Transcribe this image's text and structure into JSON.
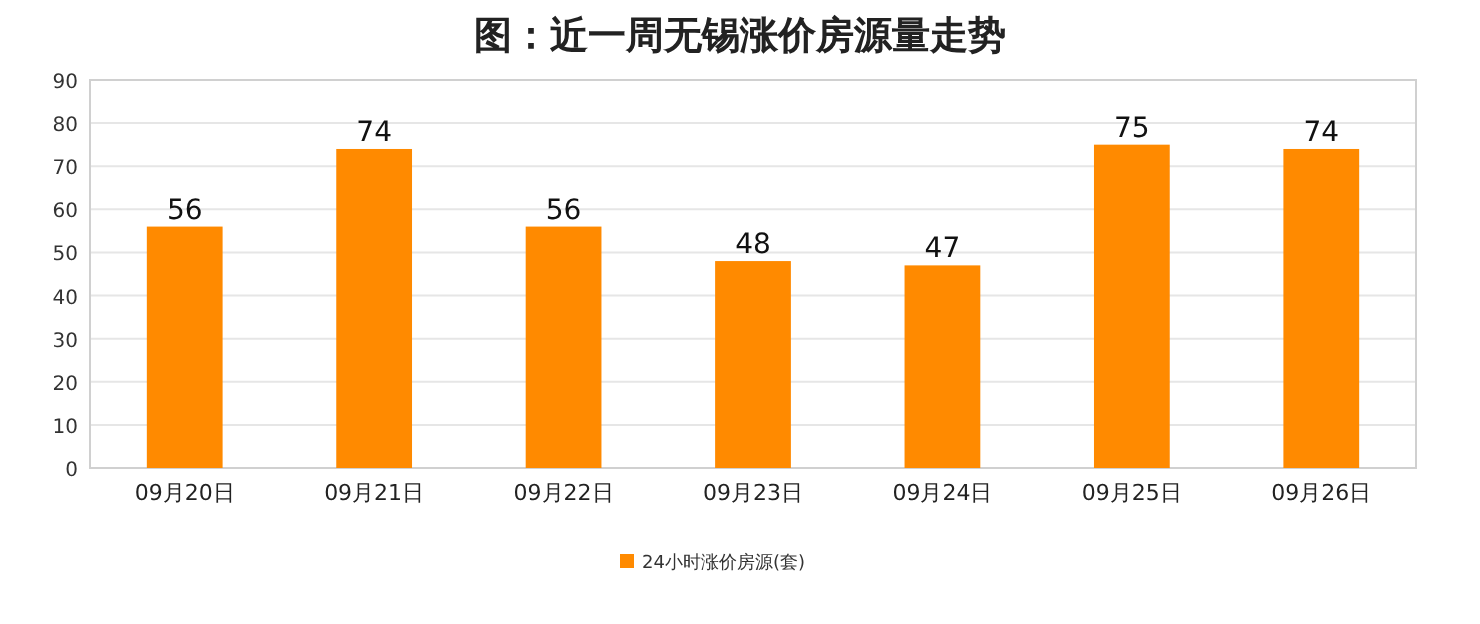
{
  "chart_data": {
    "type": "bar",
    "title": "图：近一周无锡涨价房源量走势",
    "categories": [
      "09月20日",
      "09月21日",
      "09月22日",
      "09月23日",
      "09月24日",
      "09月25日",
      "09月26日"
    ],
    "series": [
      {
        "name": "24小时涨价房源(套)",
        "color": "#ff8a00",
        "values": [
          56,
          74,
          56,
          48,
          47,
          75,
          74
        ]
      }
    ],
    "ylim": [
      0,
      90
    ],
    "yticks": [
      0,
      10,
      20,
      30,
      40,
      50,
      60,
      70,
      80,
      90
    ],
    "grid": "y",
    "data_labels": true,
    "legend": "bottom"
  }
}
